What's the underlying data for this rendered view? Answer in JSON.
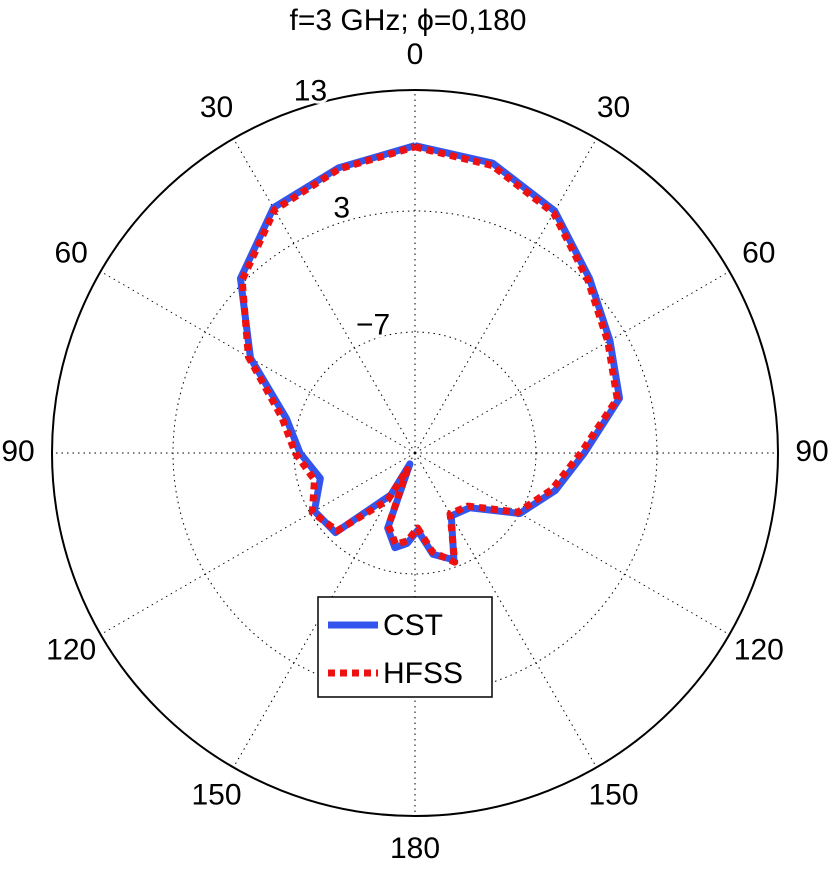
{
  "chart_data": {
    "type": "polar",
    "title": "f=3 GHz;   ϕ=0,180",
    "x": [
      0,
      15,
      30,
      45,
      60,
      75,
      90,
      105,
      120,
      135,
      150,
      160,
      170,
      178,
      185,
      192,
      200,
      205,
      210,
      225,
      240,
      255,
      270,
      285,
      300,
      315,
      330,
      345,
      360
    ],
    "series": [
      {
        "name": "CST",
        "color": "#3355ee",
        "style": "solid",
        "values": [
          8.4,
          7.8,
          6.1,
          3.4,
          1.6,
          0.5,
          -3,
          -5,
          -7,
          -10.6,
          -11,
          -7.6,
          -8.5,
          -10.6,
          -9.5,
          -9,
          -10.4,
          -16,
          -13,
          -7.7,
          -7.4,
          -8.9,
          -7.5,
          -6,
          -1.3,
          3.4,
          6.4,
          7.4,
          8.4
        ]
      },
      {
        "name": "HFSS",
        "color": "#ee1111",
        "style": "dotted",
        "values": [
          8.3,
          7.6,
          5.9,
          3.2,
          1.4,
          0.3,
          -3.3,
          -5.3,
          -7.2,
          -10.8,
          -11.2,
          -7.4,
          -8.7,
          -10.8,
          -9.7,
          -9.3,
          -10.6,
          -15.5,
          -12.5,
          -7.9,
          -7.2,
          -8.4,
          -7.1,
          -5.6,
          -1.1,
          3.2,
          6.2,
          7.3,
          8.3
        ]
      }
    ],
    "rlim": [
      -17,
      13
    ],
    "rticks": [
      {
        "value": -7,
        "label": "−7"
      },
      3,
      13
    ],
    "xticks": [
      0,
      30,
      60,
      90,
      120,
      150,
      180,
      {
        "value": 210,
        "label": "150"
      },
      {
        "value": 240,
        "label": "120"
      },
      {
        "value": 270,
        "label": "90"
      },
      {
        "value": 300,
        "label": "60"
      },
      {
        "value": 330,
        "label": "30"
      }
    ],
    "grid": true
  }
}
